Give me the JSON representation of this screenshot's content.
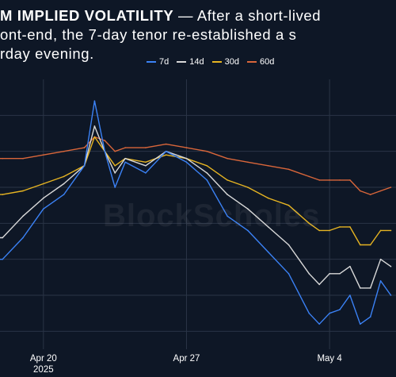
{
  "headline": {
    "line1_bold": "M IMPLIED VOLATILITY",
    "line1_rest": " — After a short-lived",
    "line2": "ont-end, the 7-day tenor re-established a s",
    "line3": "rday evening."
  },
  "watermark": "BlockScholes",
  "colors": {
    "background": "#0e1726",
    "grid": "#2a3446",
    "7d": "#3b82f6",
    "14d": "#d9d9d9",
    "30d": "#e6b422",
    "60d": "#d9663a"
  },
  "chart_data": {
    "type": "line",
    "title": "",
    "xlabel": "",
    "ylabel": "",
    "x_ticks": [
      {
        "label": "Apr 20",
        "year": "2025",
        "date": "2025-04-20"
      },
      {
        "label": "Apr 27",
        "date": "2025-04-27"
      },
      {
        "label": "May 4",
        "date": "2025-05-04"
      }
    ],
    "x_range": [
      "2025-04-17T21:00",
      "2025-05-07T06:00"
    ],
    "y_range": [
      0,
      100
    ],
    "grid": true,
    "legend_position": "top",
    "series": [
      {
        "name": "7d",
        "color": "#3b82f6",
        "x": [
          "2025-04-18T00:00",
          "2025-04-19T00:00",
          "2025-04-20T00:00",
          "2025-04-21T00:00",
          "2025-04-22T00:00",
          "2025-04-22T12:00",
          "2025-04-23T00:00",
          "2025-04-23T12:00",
          "2025-04-24T00:00",
          "2025-04-25T00:00",
          "2025-04-26T00:00",
          "2025-04-27T00:00",
          "2025-04-28T00:00",
          "2025-04-29T00:00",
          "2025-04-30T00:00",
          "2025-05-01T00:00",
          "2025-05-02T00:00",
          "2025-05-03T00:00",
          "2025-05-03T12:00",
          "2025-05-04T00:00",
          "2025-05-04T12:00",
          "2025-05-05T00:00",
          "2025-05-05T12:00",
          "2025-05-06T00:00",
          "2025-05-06T12:00",
          "2025-05-07T00:00"
        ],
        "values": [
          40,
          46,
          54,
          58,
          66,
          84,
          70,
          60,
          67,
          64,
          70,
          67,
          62,
          52,
          48,
          42,
          36,
          25,
          22,
          25,
          26,
          30,
          22,
          24,
          34,
          30
        ]
      },
      {
        "name": "14d",
        "color": "#d9d9d9",
        "x": [
          "2025-04-18T00:00",
          "2025-04-19T00:00",
          "2025-04-20T00:00",
          "2025-04-21T00:00",
          "2025-04-22T00:00",
          "2025-04-22T12:00",
          "2025-04-23T00:00",
          "2025-04-23T12:00",
          "2025-04-24T00:00",
          "2025-04-25T00:00",
          "2025-04-26T00:00",
          "2025-04-27T00:00",
          "2025-04-28T00:00",
          "2025-04-29T00:00",
          "2025-04-30T00:00",
          "2025-05-01T00:00",
          "2025-05-02T00:00",
          "2025-05-03T00:00",
          "2025-05-03T12:00",
          "2025-05-04T00:00",
          "2025-05-04T12:00",
          "2025-05-05T00:00",
          "2025-05-05T12:00",
          "2025-05-06T00:00",
          "2025-05-06T12:00",
          "2025-05-07T00:00"
        ],
        "values": [
          46,
          52,
          57,
          61,
          66,
          77,
          70,
          64,
          68,
          66,
          70,
          68,
          64,
          58,
          54,
          49,
          44,
          36,
          33,
          36,
          36,
          38,
          32,
          32,
          40,
          38
        ]
      },
      {
        "name": "30d",
        "color": "#e6b422",
        "x": [
          "2025-04-18T00:00",
          "2025-04-19T00:00",
          "2025-04-20T00:00",
          "2025-04-21T00:00",
          "2025-04-22T00:00",
          "2025-04-22T12:00",
          "2025-04-23T00:00",
          "2025-04-23T12:00",
          "2025-04-24T00:00",
          "2025-04-25T00:00",
          "2025-04-26T00:00",
          "2025-04-27T00:00",
          "2025-04-28T00:00",
          "2025-04-29T00:00",
          "2025-04-30T00:00",
          "2025-05-01T00:00",
          "2025-05-02T00:00",
          "2025-05-03T00:00",
          "2025-05-03T12:00",
          "2025-05-04T00:00",
          "2025-05-04T12:00",
          "2025-05-05T00:00",
          "2025-05-05T12:00",
          "2025-05-06T00:00",
          "2025-05-06T12:00",
          "2025-05-07T00:00"
        ],
        "values": [
          58,
          59,
          61,
          63,
          66,
          74,
          70,
          66,
          68,
          67,
          69,
          68,
          66,
          62,
          60,
          57,
          55,
          50,
          48,
          48,
          49,
          49,
          44,
          44,
          48,
          48
        ]
      },
      {
        "name": "60d",
        "color": "#d9663a",
        "x": [
          "2025-04-18T00:00",
          "2025-04-19T00:00",
          "2025-04-20T00:00",
          "2025-04-21T00:00",
          "2025-04-22T00:00",
          "2025-04-22T12:00",
          "2025-04-23T00:00",
          "2025-04-23T12:00",
          "2025-04-24T00:00",
          "2025-04-25T00:00",
          "2025-04-26T00:00",
          "2025-04-27T00:00",
          "2025-04-28T00:00",
          "2025-04-29T00:00",
          "2025-04-30T00:00",
          "2025-05-01T00:00",
          "2025-05-02T00:00",
          "2025-05-03T00:00",
          "2025-05-03T12:00",
          "2025-05-04T00:00",
          "2025-05-04T12:00",
          "2025-05-05T00:00",
          "2025-05-05T12:00",
          "2025-05-06T00:00",
          "2025-05-06T12:00",
          "2025-05-07T00:00"
        ],
        "values": [
          68,
          68,
          69,
          70,
          71,
          74,
          73,
          70,
          71,
          71,
          72,
          71,
          70,
          68,
          67,
          66,
          65,
          63,
          62,
          62,
          62,
          62,
          59,
          58,
          59,
          60
        ]
      }
    ]
  }
}
